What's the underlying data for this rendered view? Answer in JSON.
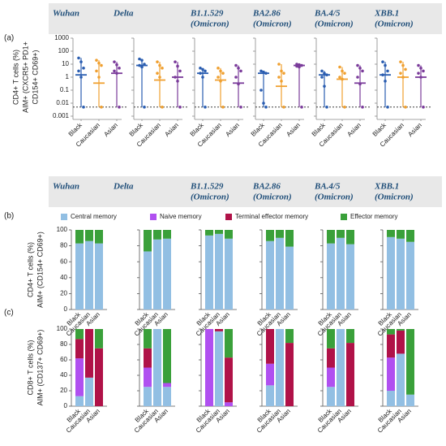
{
  "chart_data": [
    {
      "type": "scatter",
      "panel_label": "(a)",
      "y_label": [
        "CD4+ T cells (%)",
        "AIM+ (CXCR5+ PD1+",
        "CD154+ CD69+)"
      ],
      "log_scale": true,
      "ylim": [
        0.001,
        1000
      ],
      "yticks": [
        1000,
        100,
        10,
        1,
        0.1,
        0.01,
        0.001
      ],
      "threshold": 0.005,
      "categories": [
        "Black",
        "Caucasian",
        "Asian"
      ],
      "colors": [
        "#2a5db0",
        "#f0a030",
        "#7a3b9a"
      ],
      "variants": [
        {
          "name": "Wuhan",
          "groups": [
            {
              "median": 1.5,
              "max": 30,
              "min": 0.005,
              "points": [
                30,
                15,
                5,
                3,
                1,
                0.005
              ]
            },
            {
              "median": 0.35,
              "max": 20,
              "min": 0.005,
              "points": [
                20,
                12,
                8,
                3,
                1,
                0.005
              ]
            },
            {
              "median": 2,
              "max": 15,
              "min": 0.005,
              "points": [
                15,
                9,
                5,
                3,
                2,
                0.005
              ]
            }
          ]
        },
        {
          "name": "Delta",
          "groups": [
            {
              "median": 8,
              "max": 25,
              "min": 0.005,
              "points": [
                25,
                20,
                10,
                8,
                6,
                0.005
              ]
            },
            {
              "median": 0.6,
              "max": 15,
              "min": 0.005,
              "points": [
                15,
                8,
                5,
                2,
                1,
                0.005
              ]
            },
            {
              "median": 1,
              "max": 15,
              "min": 0.005,
              "points": [
                15,
                7,
                3,
                1,
                0.5,
                0.005
              ]
            }
          ]
        },
        {
          "name": "B1.1.529",
          "subtitle": "(Omicron)",
          "groups": [
            {
              "median": 2,
              "max": 5,
              "min": 0.005,
              "points": [
                5,
                4,
                3,
                2,
                1,
                0.005
              ]
            },
            {
              "median": 0.6,
              "max": 5,
              "min": 0.005,
              "points": [
                5,
                3,
                2,
                1,
                0.5,
                0.005
              ]
            },
            {
              "median": 0.35,
              "max": 8,
              "min": 0.005,
              "points": [
                8,
                5,
                3,
                1,
                0.3,
                0.005
              ]
            }
          ]
        },
        {
          "name": "BA2.86",
          "subtitle": "(Omicron)",
          "groups": [
            {
              "median": 2,
              "max": 3,
              "min": 0.005,
              "points": [
                3,
                2.5,
                2,
                0.1,
                0.01,
                0.005
              ]
            },
            {
              "median": 0.2,
              "max": 10,
              "min": 0.005,
              "points": [
                10,
                3,
                2,
                1,
                0.5,
                0.005
              ]
            },
            {
              "median": 8,
              "max": 10,
              "min": 0.005,
              "points": [
                10,
                9,
                8,
                7,
                6,
                0.005
              ]
            }
          ]
        },
        {
          "name": "BA.4/5",
          "subtitle": "(Omicron)",
          "groups": [
            {
              "median": 1.5,
              "max": 3,
              "min": 0.005,
              "points": [
                3,
                2,
                1.5,
                1,
                0.2,
                0.005
              ]
            },
            {
              "median": 0.7,
              "max": 6,
              "min": 0.005,
              "points": [
                6,
                3,
                2,
                1,
                0.7,
                0.005
              ]
            },
            {
              "median": 0.35,
              "max": 8,
              "min": 0.005,
              "points": [
                8,
                5,
                3,
                1,
                0.3,
                0.005
              ]
            }
          ]
        },
        {
          "name": "XBB.1",
          "subtitle": "(Omicron)",
          "groups": [
            {
              "median": 1.5,
              "max": 15,
              "min": 0.005,
              "points": [
                15,
                8,
                3,
                1.5,
                0.5,
                0.005
              ]
            },
            {
              "median": 1,
              "max": 15,
              "min": 0.005,
              "points": [
                15,
                8,
                4,
                2,
                1,
                0.005
              ]
            },
            {
              "median": 1,
              "max": 8,
              "min": 0.005,
              "points": [
                8,
                5,
                3,
                2,
                1,
                0.005
              ]
            }
          ]
        }
      ]
    },
    {
      "type": "stacked_bar",
      "panel_label": "(b)",
      "y_label": [
        "CD4+ T cells (%)",
        "AIM+ (CD154+ CD69+)"
      ],
      "ylim": [
        0,
        100
      ],
      "yticks": [
        0,
        20,
        40,
        60,
        80,
        100
      ],
      "categories": [
        "Black",
        "Caucasian",
        "Asian"
      ],
      "series": [
        {
          "name": "Central memory",
          "color": "#92bfe3"
        },
        {
          "name": "Naive memory",
          "color": "#b050f0"
        },
        {
          "name": "Terminal effector memory",
          "color": "#b01248"
        },
        {
          "name": "Effector memory",
          "color": "#3aa03a"
        }
      ],
      "variants": [
        {
          "name": "Wuhan",
          "values": [
            [
              83,
              0,
              0,
              17
            ],
            [
              86,
              0,
              0,
              14
            ],
            [
              83,
              0,
              0,
              17
            ]
          ]
        },
        {
          "name": "Delta",
          "values": [
            [
              73,
              0,
              0,
              27
            ],
            [
              88,
              0,
              0,
              12
            ],
            [
              89,
              0,
              0,
              11
            ]
          ]
        },
        {
          "name": "B1.1.529",
          "subtitle": "(Omicron)",
          "values": [
            [
              93,
              0,
              0,
              7
            ],
            [
              95,
              0,
              0,
              5
            ],
            [
              89,
              0,
              0,
              11
            ]
          ]
        },
        {
          "name": "BA2.86",
          "subtitle": "(Omicron)",
          "values": [
            [
              86,
              0,
              0,
              14
            ],
            [
              90,
              0,
              0,
              10
            ],
            [
              79,
              0,
              0,
              21
            ]
          ]
        },
        {
          "name": "BA.4/5",
          "subtitle": "(Omicron)",
          "values": [
            [
              83,
              0,
              0,
              17
            ],
            [
              90,
              0,
              0,
              10
            ],
            [
              82,
              0,
              0,
              18
            ]
          ]
        },
        {
          "name": "XBB.1",
          "subtitle": "(Omicron)",
          "values": [
            [
              91,
              0,
              0,
              9
            ],
            [
              89,
              0,
              0,
              11
            ],
            [
              85,
              0,
              0,
              15
            ]
          ]
        }
      ]
    },
    {
      "type": "stacked_bar",
      "panel_label": "(c)",
      "y_label": [
        "CD8+ T cells (%)",
        "AIM+ (CD137+ CD69+)"
      ],
      "ylim": [
        0,
        100
      ],
      "yticks": [
        0,
        20,
        40,
        60,
        80,
        100
      ],
      "categories": [
        "Black",
        "Caucasian",
        "Asian"
      ],
      "colors": [
        "#92bfe3",
        "#b050f0",
        "#b01248",
        "#3aa03a"
      ],
      "variants": [
        {
          "values": [
            [
              13,
              49,
              25,
              13
            ],
            [
              37,
              0,
              63,
              0
            ],
            [
              0,
              0,
              75,
              25
            ]
          ]
        },
        {
          "values": [
            [
              25,
              25,
              25,
              25
            ],
            [
              100,
              0,
              0,
              0
            ],
            [
              25,
              5,
              0,
              70
            ]
          ]
        },
        {
          "values": [
            [
              0,
              100,
              0,
              0
            ],
            [
              97,
              0,
              3,
              0
            ],
            [
              0,
              5,
              58,
              37
            ]
          ]
        },
        {
          "values": [
            [
              27,
              28,
              45,
              0
            ],
            [
              100,
              0,
              0,
              0
            ],
            [
              0,
              0,
              82,
              18
            ]
          ]
        },
        {
          "values": [
            [
              25,
              25,
              25,
              25
            ],
            [
              100,
              0,
              0,
              0
            ],
            [
              0,
              0,
              82,
              18
            ]
          ]
        },
        {
          "values": [
            [
              20,
              43,
              30,
              7
            ],
            [
              68,
              0,
              30,
              2
            ],
            [
              15,
              0,
              0,
              85
            ]
          ]
        }
      ]
    }
  ]
}
